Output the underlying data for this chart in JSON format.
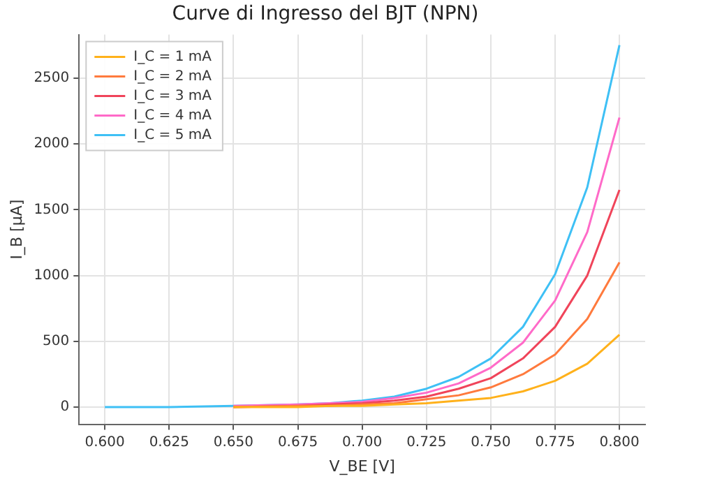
{
  "chart_data": {
    "type": "line",
    "title": "Curve di Ingresso del BJT (NPN)",
    "xlabel": "V_BE [V]",
    "ylabel": "I_B [µA]",
    "x": [
      0.6,
      0.625,
      0.65,
      0.675,
      0.6875,
      0.7,
      0.7125,
      0.725,
      0.7375,
      0.75,
      0.7625,
      0.775,
      0.7875,
      0.8
    ],
    "series": [
      {
        "name": "I_C = 1 mA",
        "color": "#ffb11b",
        "values": [
          null,
          null,
          0,
          0,
          10,
          10,
          20,
          30,
          50,
          70,
          120,
          200,
          330,
          550
        ]
      },
      {
        "name": "I_C = 2 mA",
        "color": "#ff7a3d",
        "values": [
          null,
          null,
          0,
          10,
          10,
          20,
          30,
          60,
          90,
          150,
          250,
          400,
          670,
          1100
        ]
      },
      {
        "name": "I_C = 3 mA",
        "color": "#f0445a",
        "values": [
          null,
          null,
          0,
          10,
          20,
          30,
          50,
          80,
          140,
          220,
          370,
          610,
          1000,
          1650
        ]
      },
      {
        "name": "I_C = 4 mA",
        "color": "#ff6ac8",
        "values": [
          null,
          null,
          10,
          20,
          30,
          40,
          70,
          110,
          180,
          300,
          490,
          810,
          1330,
          2200
        ]
      },
      {
        "name": "I_C = 5 mA",
        "color": "#3ec0f5",
        "values": [
          0,
          0,
          10,
          20,
          30,
          50,
          80,
          140,
          230,
          370,
          610,
          1010,
          1670,
          2750
        ]
      }
    ],
    "xlim": [
      0.59,
      0.81
    ],
    "xticks": [
      {
        "value": 0.6,
        "label": "0.600"
      },
      {
        "value": 0.625,
        "label": "0.625"
      },
      {
        "value": 0.65,
        "label": "0.650"
      },
      {
        "value": 0.675,
        "label": "0.675"
      },
      {
        "value": 0.7,
        "label": "0.700"
      },
      {
        "value": 0.725,
        "label": "0.725"
      },
      {
        "value": 0.75,
        "label": "0.750"
      },
      {
        "value": 0.775,
        "label": "0.775"
      },
      {
        "value": 0.8,
        "label": "0.800"
      }
    ],
    "ylim": [
      -130,
      2830
    ],
    "yticks": [
      0,
      500,
      1000,
      1500,
      2000,
      2500
    ],
    "grid": true,
    "legend": "top left",
    "marker": "none",
    "line_style": "solid"
  }
}
